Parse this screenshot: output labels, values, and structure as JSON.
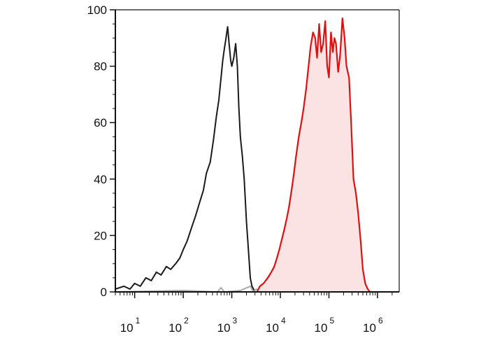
{
  "chart_data": {
    "type": "area",
    "x_scale": "log",
    "xlim": [
      4,
      2800000
    ],
    "ylim": [
      0,
      100
    ],
    "y_ticks": [
      0,
      20,
      40,
      60,
      80,
      100
    ],
    "y_tick_labels": [
      "0",
      "20",
      "40",
      "60",
      "80",
      "100"
    ],
    "x_ticks": [
      {
        "value": 10,
        "base": "10",
        "exp": "1"
      },
      {
        "value": 100,
        "base": "10",
        "exp": "2"
      },
      {
        "value": 1000,
        "base": "10",
        "exp": "3"
      },
      {
        "value": 10000,
        "base": "10",
        "exp": "4"
      },
      {
        "value": 100000,
        "base": "10",
        "exp": "5"
      },
      {
        "value": 1000000,
        "base": "10",
        "exp": "6"
      }
    ],
    "grid": false,
    "series": [
      {
        "color": "#1a1a1a",
        "fill": false,
        "x": [
          4,
          6,
          8,
          10,
          13,
          17,
          22,
          28,
          35,
          45,
          55,
          70,
          85,
          100,
          120,
          150,
          180,
          220,
          260,
          300,
          360,
          420,
          480,
          540,
          600,
          650,
          700,
          760,
          820,
          880,
          950,
          1000,
          1100,
          1200,
          1300,
          1400,
          1500,
          1650,
          1800,
          2000,
          2200,
          2400,
          2600,
          2800,
          3000,
          3300
        ],
        "y": [
          1,
          2,
          1,
          3,
          2,
          5,
          4,
          7,
          6,
          9,
          8,
          10,
          12,
          15,
          18,
          23,
          27,
          32,
          36,
          42,
          46,
          54,
          62,
          68,
          76,
          82,
          86,
          90,
          94,
          88,
          82,
          80,
          83,
          88,
          80,
          65,
          55,
          48,
          40,
          25,
          15,
          5,
          2,
          1,
          0,
          0
        ]
      },
      {
        "color": "#aaaaaa",
        "fill": false,
        "x": [
          4,
          100,
          500,
          600,
          700,
          1500,
          2400,
          2800,
          3200,
          4000
        ],
        "y": [
          0,
          0.5,
          0,
          1.5,
          0,
          0.5,
          2,
          0,
          1,
          0
        ]
      },
      {
        "color": "#e01010",
        "fill": true,
        "fill_color": "#fbe3e3",
        "x": [
          3300,
          3800,
          4500,
          5500,
          6500,
          7500,
          8500,
          9500,
          10500,
          12000,
          13500,
          15000,
          17000,
          19000,
          21000,
          24000,
          27000,
          30000,
          34000,
          38000,
          42000,
          47000,
          52000,
          57000,
          63000,
          69000,
          76000,
          84000,
          92000,
          100000,
          110000,
          120000,
          130000,
          140000,
          155000,
          170000,
          190000,
          210000,
          230000,
          260000,
          290000,
          320000,
          360000,
          400000,
          450000,
          500000,
          560000,
          630000,
          700000,
          800000
        ],
        "y": [
          0,
          2,
          3,
          5,
          7,
          9,
          12,
          15,
          18,
          22,
          26,
          30,
          36,
          42,
          48,
          55,
          60,
          65,
          72,
          80,
          87,
          92,
          90,
          83,
          95,
          85,
          88,
          96,
          80,
          76,
          92,
          85,
          90,
          88,
          78,
          84,
          97,
          90,
          80,
          76,
          58,
          40,
          35,
          28,
          18,
          8,
          3,
          1,
          0,
          0
        ]
      }
    ]
  }
}
